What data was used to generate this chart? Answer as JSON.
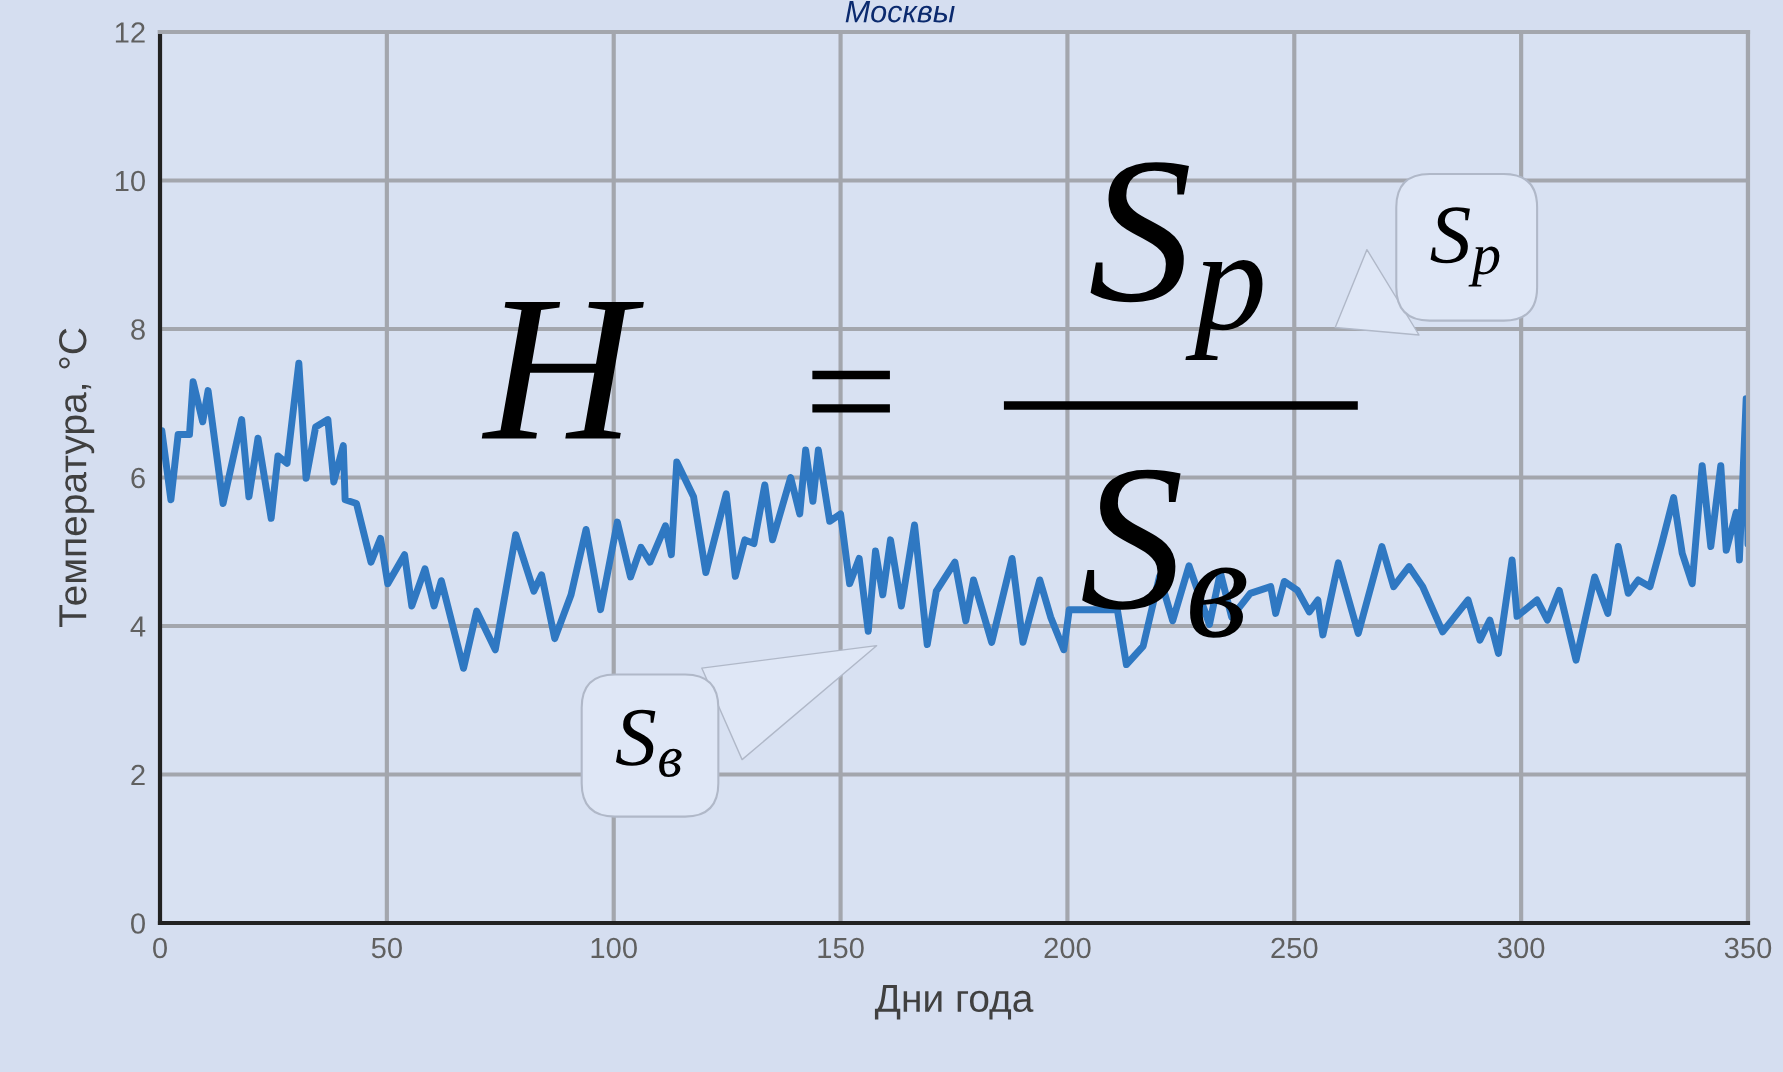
{
  "chart_data": {
    "type": "line",
    "title": "Москвы",
    "xlabel": "Дни года",
    "ylabel": "Температура, °C",
    "xlim": [
      0,
      350
    ],
    "xticks": [
      0,
      50,
      100,
      150,
      200,
      250,
      300,
      350
    ],
    "ylim": [
      0,
      12
    ],
    "yticks": [
      0,
      2,
      4,
      6,
      8,
      10,
      12
    ],
    "grid": true,
    "annotations": [
      "H",
      "=",
      "S$_{p}$",
      "S$_{в}$",
      "S$_{p}$",
      "S$_{в}$"
    ],
    "series": [
      {
        "color": "#2f78c2",
        "x": [
          0.4,
          2.4,
          4,
          6.5,
          7.3,
          9.4,
          10.6,
          13.9,
          18,
          19.6,
          21.6,
          24.5,
          26,
          28,
          30.6,
          32.2,
          34.3,
          37,
          38.3,
          40.4,
          40.8,
          43.3,
          46.5,
          48.6,
          50.2,
          53.9,
          55.5,
          58.4,
          60.4,
          62,
          66.9,
          69.8,
          73.9,
          78.4,
          82.4,
          84.1,
          87,
          90.6,
          93.9,
          97.1,
          100.8,
          103.7,
          106,
          108,
          111.4,
          112.7,
          113.9,
          117.6,
          120.3,
          124.8,
          126.8,
          128.9,
          130.9,
          133.3,
          135,
          139,
          141,
          142.3,
          143.9,
          145.1,
          147.6,
          150,
          152,
          154.1,
          156.1,
          157.7,
          159.3,
          161,
          163.4,
          166.3,
          169.1,
          171.1,
          175.2,
          177.6,
          179.3,
          183.3,
          187.8,
          190.2,
          193.9,
          196.3,
          199.2,
          200.4,
          207.7,
          211,
          213,
          216.7,
          220.3,
          223.2,
          226.8,
          231.3,
          233.7,
          236.2,
          240.3,
          244.8,
          245.9,
          247.8,
          250.7,
          253.3,
          255.2,
          256.3,
          259.7,
          264.1,
          269.3,
          271.9,
          275.3,
          278.3,
          282.7,
          288.3,
          290.9,
          293.1,
          295,
          298,
          299.1,
          303.5,
          305.8,
          308.4,
          312.1,
          316.2,
          319.1,
          321.4,
          323.6,
          325.8,
          328.4,
          331,
          333.6,
          335.5,
          337.7,
          339.9,
          341.8,
          344,
          345.2,
          347.4,
          348.1,
          349.6,
          350
        ],
        "values": [
          6.63,
          5.7,
          6.58,
          6.58,
          7.29,
          6.75,
          7.17,
          5.65,
          6.78,
          5.74,
          6.53,
          5.45,
          6.29,
          6.19,
          7.54,
          5.99,
          6.68,
          6.78,
          5.94,
          6.43,
          5.7,
          5.65,
          4.86,
          5.18,
          4.57,
          4.96,
          4.27,
          4.77,
          4.27,
          4.61,
          3.43,
          4.2,
          3.68,
          5.23,
          4.47,
          4.69,
          3.83,
          4.42,
          5.3,
          4.22,
          5.4,
          4.66,
          5.06,
          4.86,
          5.35,
          4.96,
          6.21,
          5.74,
          4.72,
          5.78,
          4.67,
          5.16,
          5.11,
          5.9,
          5.16,
          6.0,
          5.51,
          6.37,
          5.68,
          6.37,
          5.41,
          5.51,
          4.57,
          4.91,
          3.93,
          5.01,
          4.42,
          5.16,
          4.27,
          5.36,
          3.75,
          4.47,
          4.86,
          4.07,
          4.62,
          3.78,
          4.91,
          3.78,
          4.62,
          4.12,
          3.68,
          4.22,
          4.22,
          4.22,
          3.48,
          3.73,
          4.67,
          4.07,
          4.81,
          4.02,
          4.72,
          4.12,
          4.44,
          4.53,
          4.17,
          4.6,
          4.48,
          4.19,
          4.35,
          3.88,
          4.85,
          3.9,
          5.07,
          4.53,
          4.8,
          4.53,
          3.92,
          4.35,
          3.81,
          4.08,
          3.63,
          4.89,
          4.13,
          4.35,
          4.08,
          4.48,
          3.54,
          4.66,
          4.17,
          5.07,
          4.44,
          4.62,
          4.53,
          5.11,
          5.73,
          4.98,
          4.57,
          6.16,
          5.07,
          6.16,
          5.02,
          5.53,
          4.89,
          7.06,
          5.1
        ]
      }
    ]
  }
}
